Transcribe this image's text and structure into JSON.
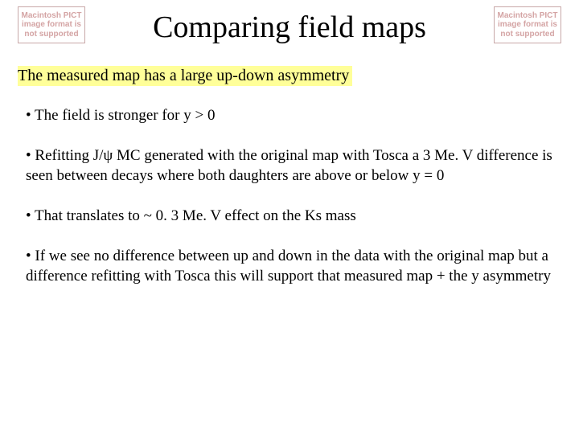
{
  "placeholder_text": "Macintosh PICT image format is not supported",
  "title": "Comparing field maps",
  "subtitle": "The measured map has a large up-down asymmetry",
  "bullets": {
    "b1": "• The field is stronger for y > 0",
    "b2": "• Refitting J/ψ MC generated with the original map with Tosca a 3 Me. V difference is seen between decays where both daughters are above or below y = 0",
    "b3": "• That translates to ~ 0. 3 Me. V effect on the Ks mass",
    "b4": "• If we see no difference between up and down in the data with the original map but a difference refitting with Tosca this will support that measured map + the y asymmetry"
  }
}
